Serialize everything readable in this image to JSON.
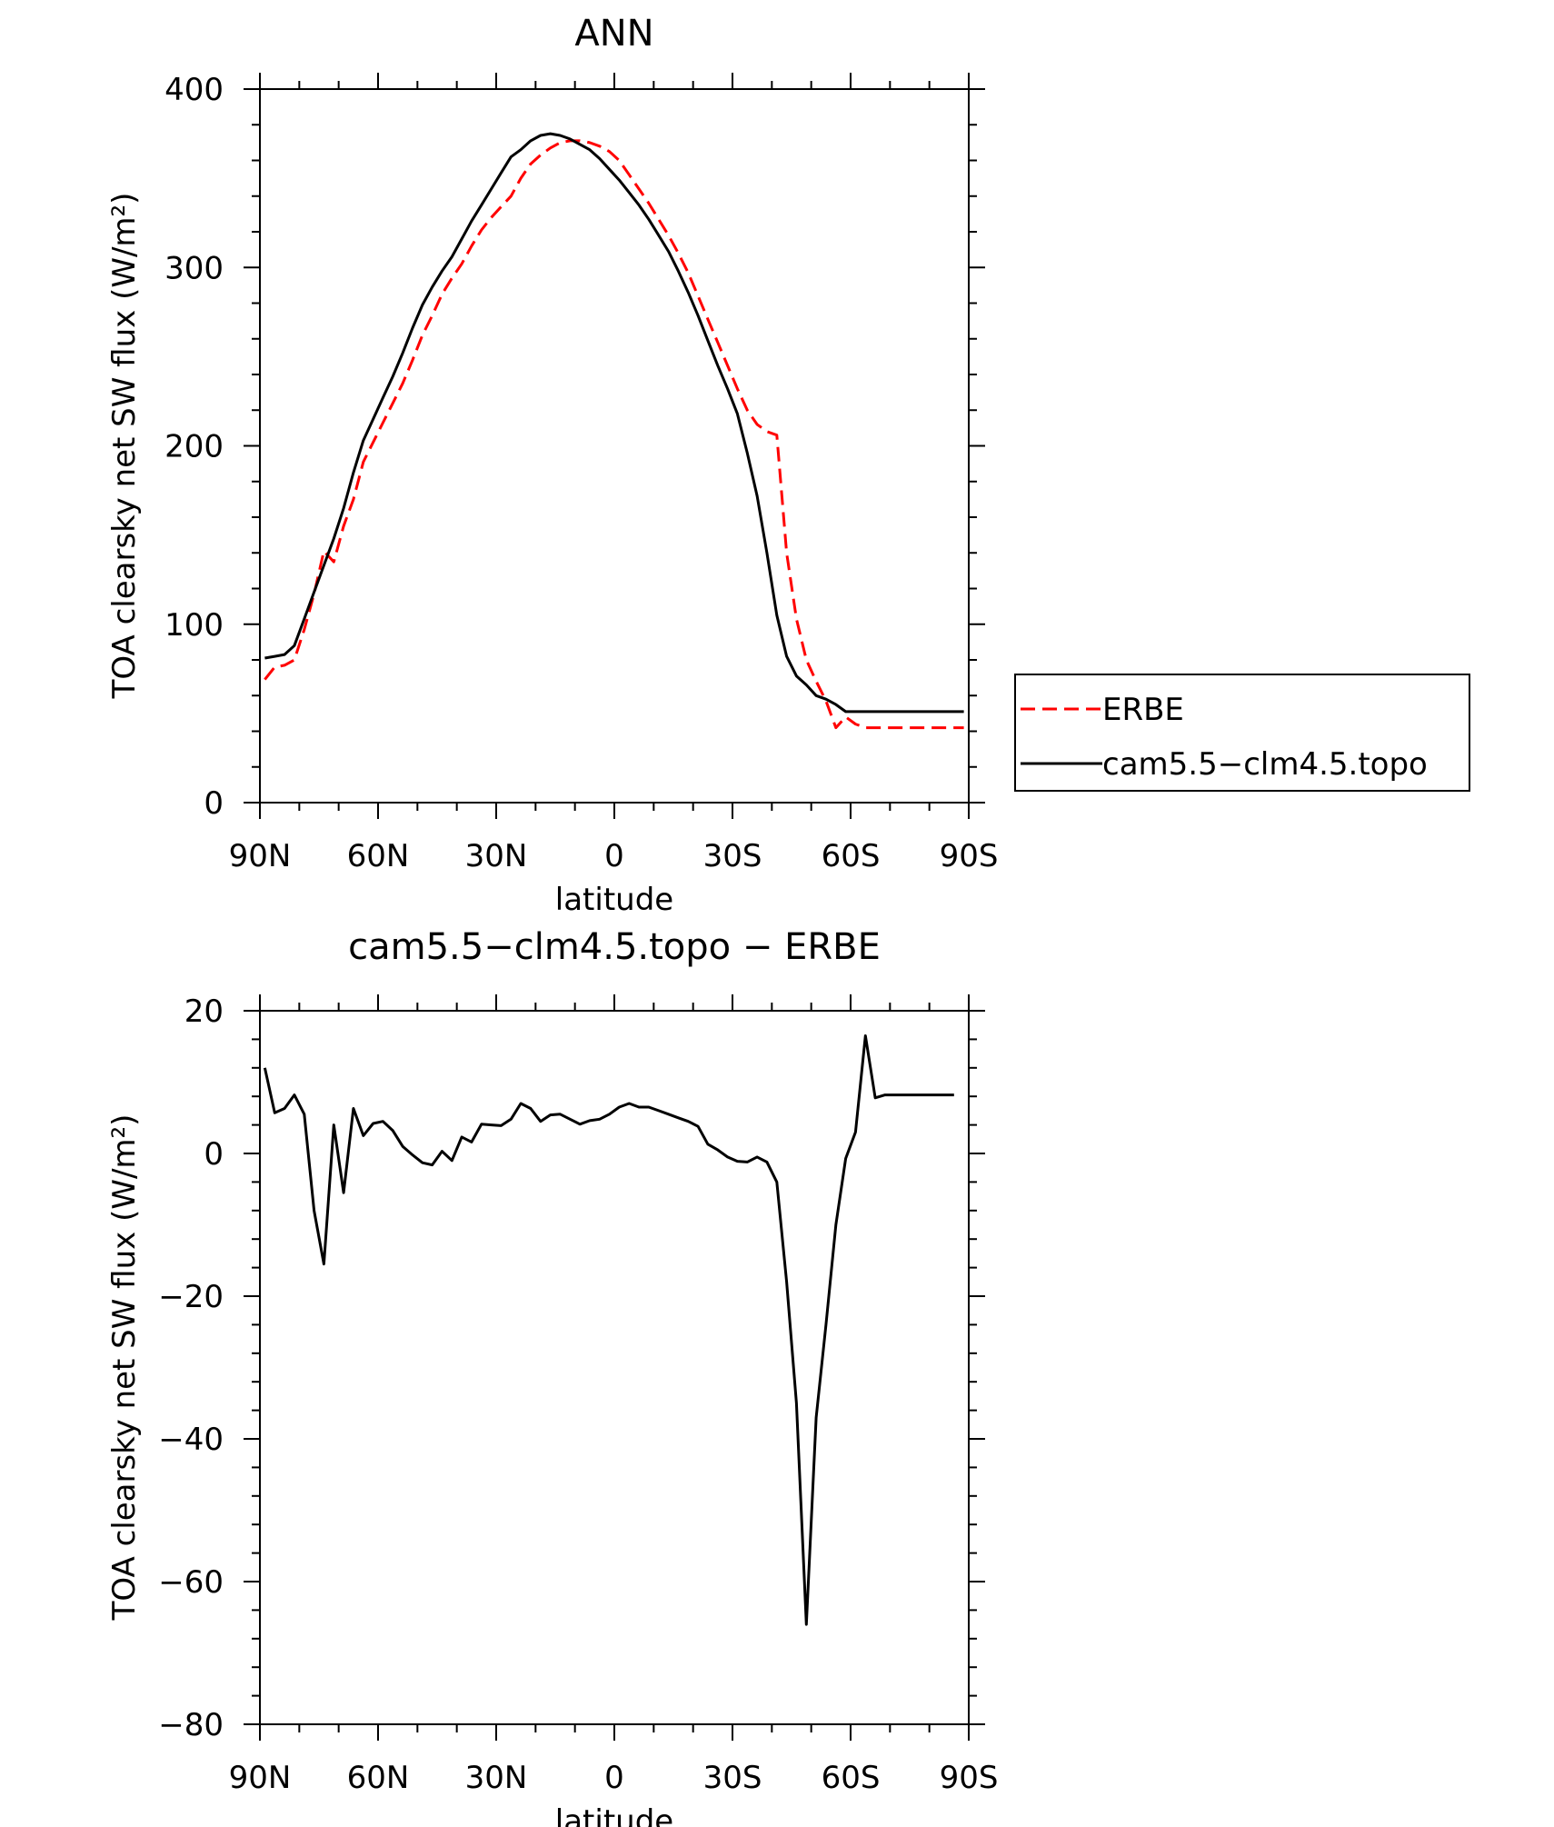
{
  "chart_data": [
    {
      "type": "line",
      "title": "ANN",
      "xlabel": "latitude",
      "ylabel": "TOA clearsky net SW flux (W/m²)",
      "xlim": [
        90,
        -90
      ],
      "ylim": [
        0,
        400
      ],
      "x_ticks": [
        90,
        60,
        30,
        0,
        -30,
        -60,
        -90
      ],
      "x_tick_labels": [
        "90N",
        "60N",
        "30N",
        "0",
        "30S",
        "60S",
        "90S"
      ],
      "y_ticks": [
        0,
        100,
        200,
        300,
        400
      ],
      "y_tick_labels": [
        "0",
        "100",
        "200",
        "300",
        "400"
      ],
      "legend_position": "right",
      "series": [
        {
          "name": "ERBE",
          "color": "#ff0000",
          "dash": "dashed",
          "x": [
            88.75,
            86.25,
            83.75,
            81.25,
            78.75,
            76.25,
            73.75,
            71.25,
            68.75,
            66.25,
            63.75,
            61.25,
            58.75,
            56.25,
            53.75,
            51.25,
            48.75,
            46.25,
            43.75,
            41.25,
            38.75,
            36.25,
            33.75,
            31.25,
            28.75,
            26.25,
            23.75,
            21.25,
            18.75,
            16.25,
            13.75,
            11.25,
            8.75,
            6.25,
            3.75,
            1.25,
            -1.25,
            -3.75,
            -6.25,
            -8.75,
            -11.25,
            -13.75,
            -16.25,
            -18.75,
            -21.25,
            -23.75,
            -26.25,
            -28.75,
            -31.25,
            -33.75,
            -36.25,
            -38.75,
            -41.25,
            -43.75,
            -46.25,
            -48.75,
            -51.25,
            -53.75,
            -56.25,
            -58.75,
            -61.25,
            -63.75,
            -66.25,
            -68.75,
            -71.25,
            -73.75,
            -76.25,
            -78.75,
            -81.25,
            -83.75,
            -86.25,
            -88.75
          ],
          "y": [
            69,
            76,
            77,
            80,
            97,
            117,
            141,
            135,
            155,
            170,
            191,
            202,
            213,
            224,
            235,
            248,
            262,
            273,
            285,
            294,
            302,
            312,
            321,
            328,
            334,
            340,
            350,
            358,
            363,
            367,
            370,
            371,
            371,
            370,
            368,
            365,
            360,
            352,
            344,
            336,
            327,
            318,
            308,
            297,
            284,
            271,
            258,
            245,
            232,
            220,
            212,
            208,
            206,
            140,
            103,
            80,
            68,
            57,
            42,
            48,
            44,
            42,
            42,
            42,
            42,
            42,
            42,
            42,
            42,
            42,
            42,
            42
          ]
        },
        {
          "name": "cam5.5−clm4.5.topo",
          "color": "#000000",
          "dash": "solid",
          "x": [
            88.75,
            86.25,
            83.75,
            81.25,
            78.75,
            76.25,
            73.75,
            71.25,
            68.75,
            66.25,
            63.75,
            61.25,
            58.75,
            56.25,
            53.75,
            51.25,
            48.75,
            46.25,
            43.75,
            41.25,
            38.75,
            36.25,
            33.75,
            31.25,
            28.75,
            26.25,
            23.75,
            21.25,
            18.75,
            16.25,
            13.75,
            11.25,
            8.75,
            6.25,
            3.75,
            1.25,
            -1.25,
            -3.75,
            -6.25,
            -8.75,
            -11.25,
            -13.75,
            -16.25,
            -18.75,
            -21.25,
            -23.75,
            -26.25,
            -28.75,
            -31.25,
            -33.75,
            -36.25,
            -38.75,
            -41.25,
            -43.75,
            -46.25,
            -48.75,
            -51.25,
            -53.75,
            -56.25,
            -58.75,
            -61.25,
            -63.75,
            -66.25,
            -68.75,
            -71.25,
            -73.75,
            -76.25,
            -78.75,
            -81.25,
            -83.75,
            -86.25,
            -88.75
          ],
          "y": [
            81,
            82,
            83,
            88,
            103,
            118,
            133,
            148,
            165,
            185,
            203,
            215,
            227,
            239,
            252,
            266,
            279,
            289,
            298,
            306,
            316,
            326,
            335,
            344,
            353,
            362,
            366,
            371,
            374,
            375,
            374,
            372,
            369,
            366,
            361,
            355,
            349,
            342,
            335,
            327,
            318,
            309,
            298,
            286,
            273,
            259,
            245,
            232,
            218,
            196,
            172,
            140,
            105,
            82,
            71,
            66,
            60,
            58,
            55,
            51,
            51,
            51,
            51,
            51,
            51,
            51,
            51,
            51,
            51,
            51,
            51,
            51
          ]
        }
      ]
    },
    {
      "type": "line",
      "title": "cam5.5−clm4.5.topo − ERBE",
      "xlabel": "latitude",
      "ylabel": "TOA clearsky net SW flux (W/m²)",
      "xlim": [
        90,
        -90
      ],
      "ylim": [
        -80,
        20
      ],
      "x_ticks": [
        90,
        60,
        30,
        0,
        -30,
        -60,
        -90
      ],
      "x_tick_labels": [
        "90N",
        "60N",
        "30N",
        "0",
        "30S",
        "60S",
        "90S"
      ],
      "y_ticks": [
        -80,
        -60,
        -40,
        -20,
        0,
        20
      ],
      "y_tick_labels": [
        "−80",
        "−60",
        "−40",
        "−20",
        "0",
        "20"
      ],
      "series": [
        {
          "color": "#000000",
          "dash": "solid",
          "x": [
            88.75,
            86.25,
            83.75,
            81.25,
            78.75,
            76.25,
            73.75,
            71.25,
            68.75,
            66.25,
            63.75,
            61.25,
            58.75,
            56.25,
            53.75,
            51.25,
            48.75,
            46.25,
            43.75,
            41.25,
            38.75,
            36.25,
            33.75,
            31.25,
            28.75,
            26.25,
            23.75,
            21.25,
            18.75,
            16.25,
            13.75,
            11.25,
            8.75,
            6.25,
            3.75,
            1.25,
            -1.25,
            -3.75,
            -6.25,
            -8.75,
            -11.25,
            -13.75,
            -16.25,
            -18.75,
            -21.25,
            -23.75,
            -26.25,
            -28.75,
            -31.25,
            -33.75,
            -36.25,
            -38.75,
            -41.25,
            -43.75,
            -46.25,
            -48.75,
            -51.25,
            -53.75,
            -56.25,
            -58.75,
            -61.25,
            -63.75,
            -66.25,
            -68.75,
            -71.25,
            -73.75,
            -76.25,
            -78.75,
            -81.25,
            -83.75,
            -86.25
          ],
          "y": [
            12,
            5.7,
            6.3,
            8.2,
            5.5,
            -8,
            -15.5,
            4,
            -5.5,
            6.3,
            2.5,
            4.2,
            4.5,
            3.2,
            1,
            -0.2,
            -1.3,
            -1.6,
            0.3,
            -1,
            2.3,
            1.6,
            4.1,
            4,
            3.9,
            4.8,
            7,
            6.3,
            4.5,
            5.4,
            5.5,
            4.8,
            4.1,
            4.6,
            4.8,
            5.5,
            6.5,
            7,
            6.5,
            6.5,
            6,
            5.5,
            5,
            4.5,
            3.8,
            1.3,
            0.5,
            -0.5,
            -1.1,
            -1.2,
            -0.5,
            -1.2,
            -4,
            -18,
            -35,
            -66,
            -37,
            -24,
            -10,
            -0.7,
            3,
            16.5,
            7.8,
            8.2,
            8.2,
            8.2,
            8.2,
            8.2,
            8.2,
            8.2,
            8.2
          ]
        }
      ]
    }
  ]
}
